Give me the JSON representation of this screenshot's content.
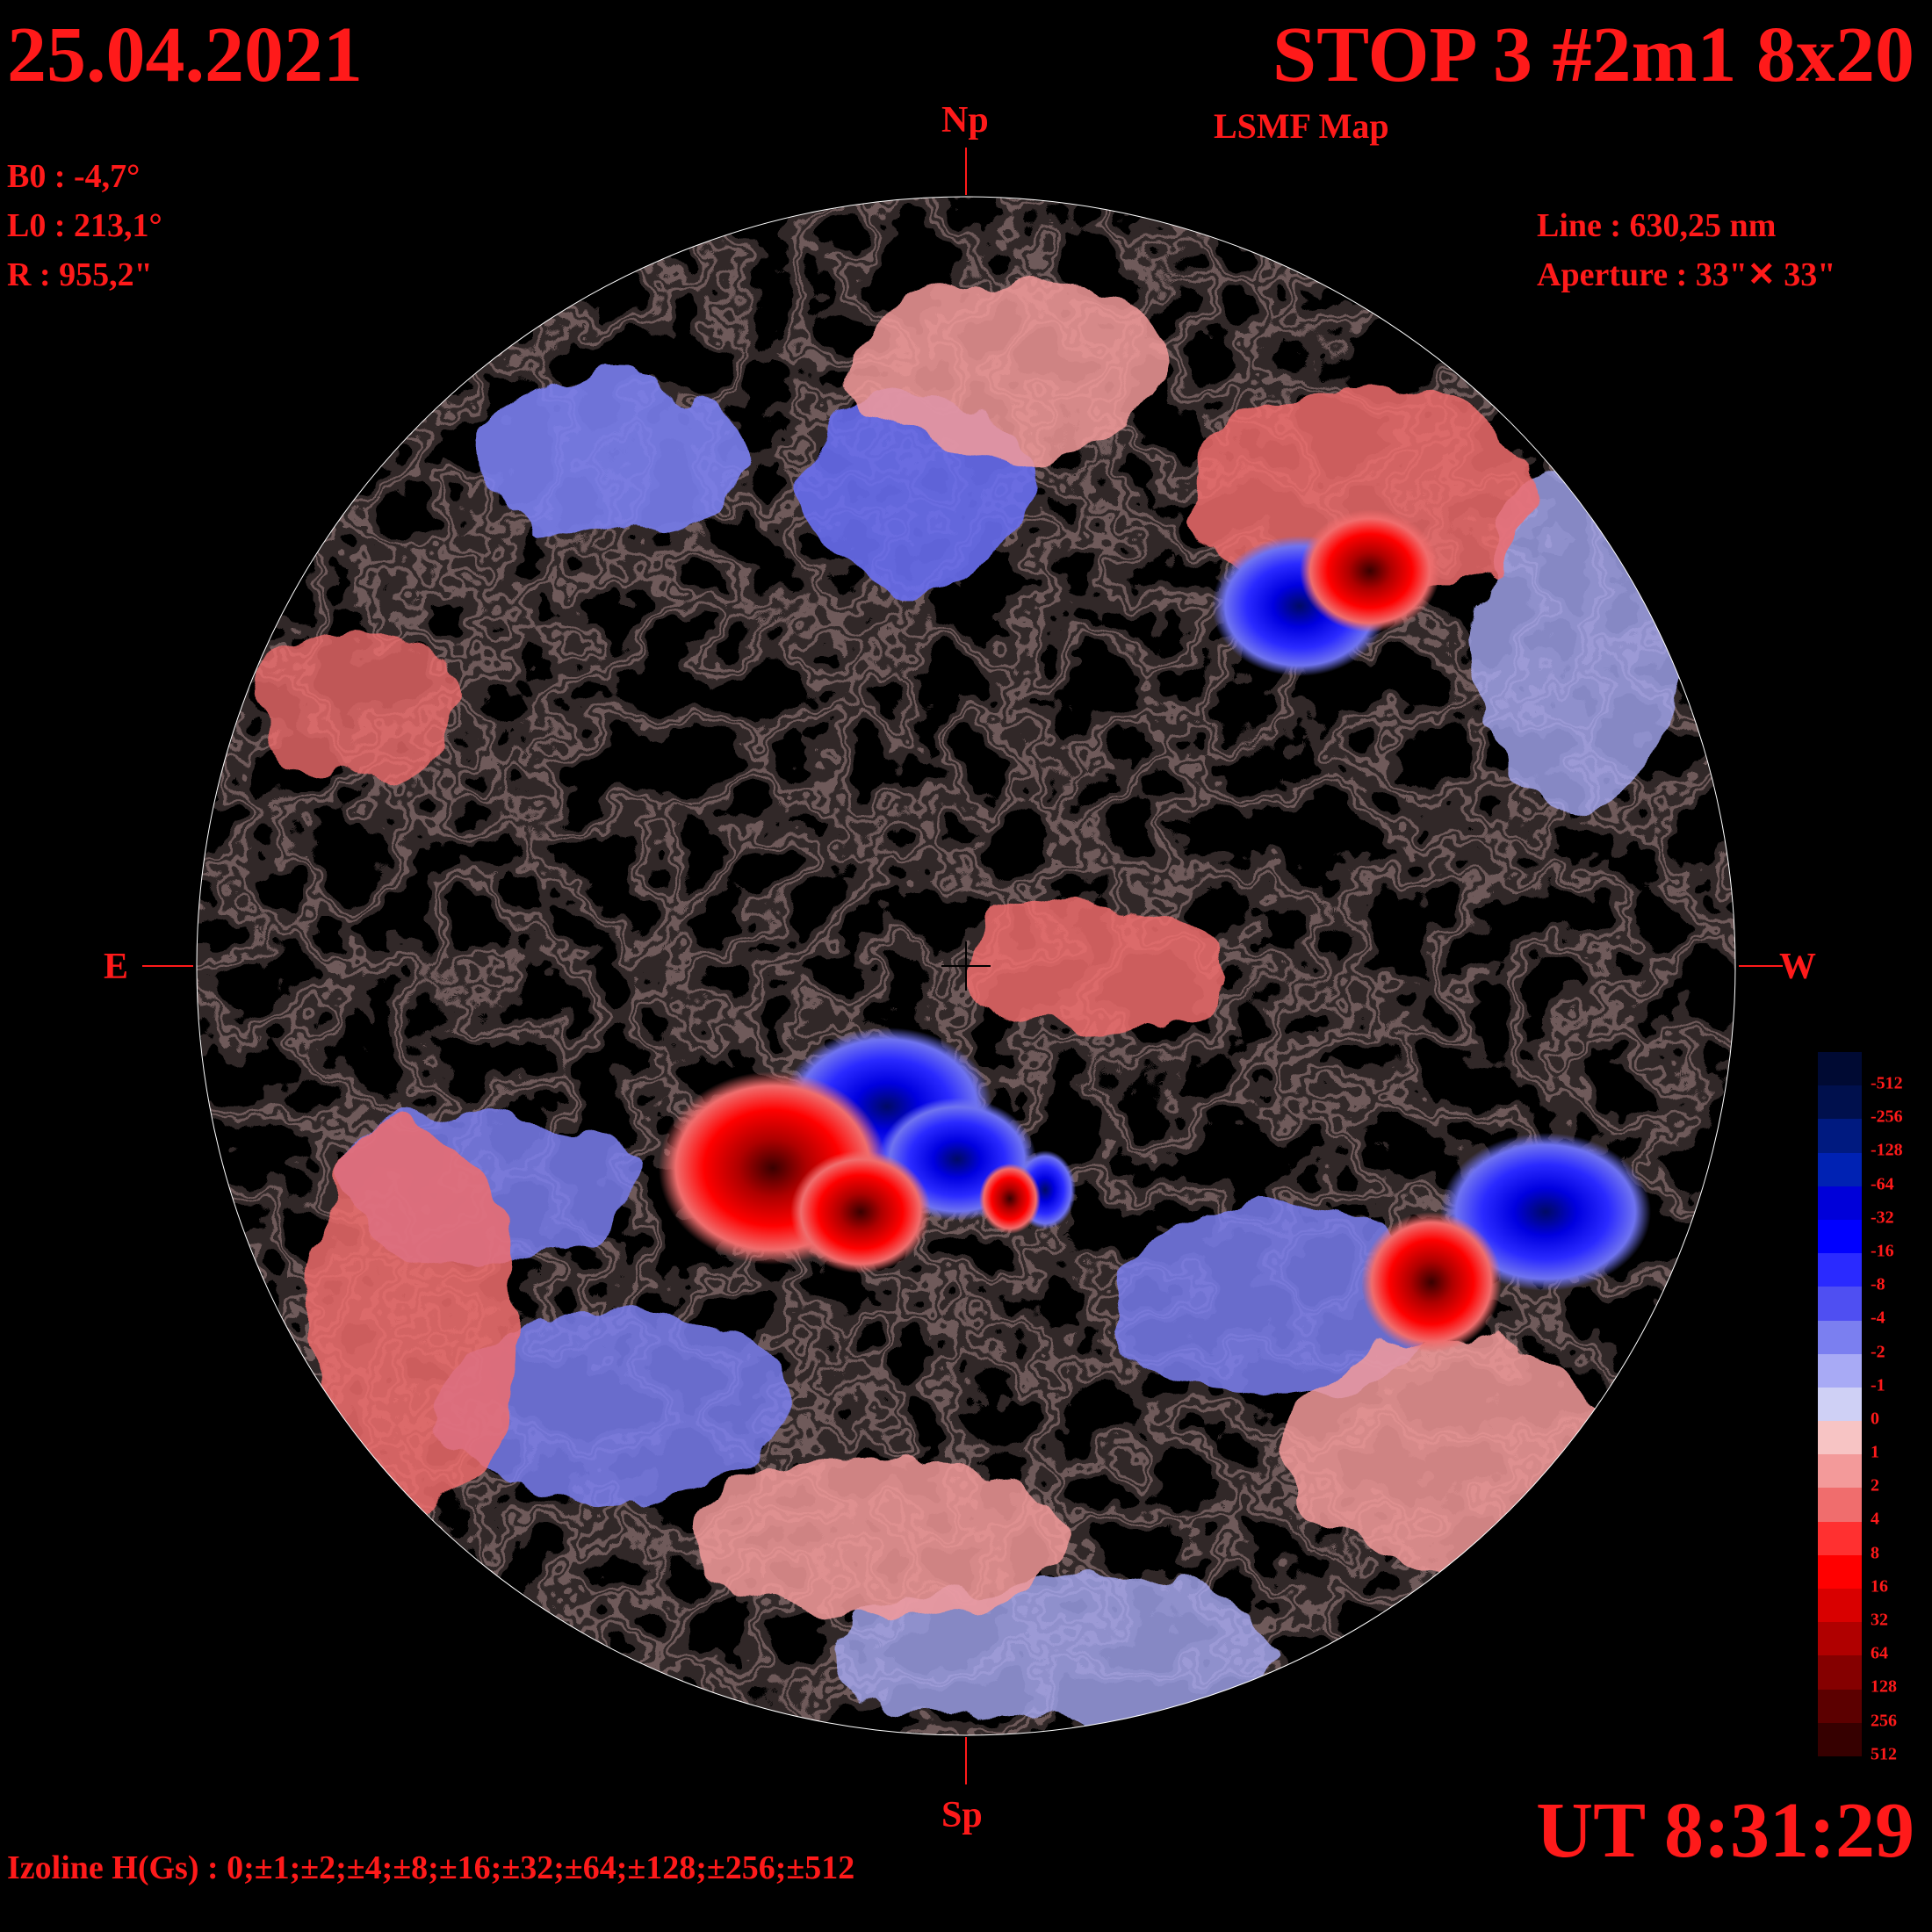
{
  "header": {
    "date": "25.04.2021",
    "title": "STOP 3 #2m1 8x20",
    "subtitle": "LSMF  Map"
  },
  "params": {
    "b0": "B0 : -4,7°",
    "l0": "L0 : 213,1°",
    "r": "R  : 955,2\"",
    "line": "Line :  630,25 nm",
    "aperture": "Aperture : 33\"✕ 33\""
  },
  "directions": {
    "north": "Np",
    "south": "Sp",
    "east": "E",
    "west": "W"
  },
  "footer": {
    "isolines": "Izoline H(Gs) : 0;±1;±2;±4;±8;±16;±32;±64;±128;±256;±512",
    "time": "UT 8:31:29"
  },
  "colors": {
    "background": "#000000",
    "text": "#ff1a1a",
    "isoline": "#ffffff"
  },
  "legend": {
    "labels": [
      "-512",
      "-256",
      "-128",
      "-64",
      "-32",
      "-16",
      "-8",
      "-4",
      "-2",
      "-1",
      "0",
      "1",
      "2",
      "4",
      "8",
      "16",
      "32",
      "64",
      "128",
      "256",
      "512"
    ],
    "colors": [
      "#000a33",
      "#00104d",
      "#001a80",
      "#0022b3",
      "#0000d9",
      "#0000ff",
      "#2a2aff",
      "#4f4ff2",
      "#7b7ff0",
      "#a8aaf5",
      "#cfd0f5",
      "#f7c4c4",
      "#f39a9a",
      "#f06d6d",
      "#ff3030",
      "#ff0000",
      "#d90000",
      "#b00000",
      "#850000",
      "#5c0000",
      "#360000"
    ]
  },
  "features": [
    {
      "label": "neg-nw",
      "polarity": "negative",
      "level": 5
    },
    {
      "label": "pos-nw",
      "polarity": "positive",
      "level": 5
    },
    {
      "label": "neg-center",
      "polarity": "negative",
      "level": 6
    },
    {
      "label": "pos-center",
      "polarity": "positive",
      "level": 6
    },
    {
      "label": "neg-se",
      "polarity": "negative",
      "level": 5
    },
    {
      "label": "pos-se",
      "polarity": "positive",
      "level": 5
    }
  ]
}
